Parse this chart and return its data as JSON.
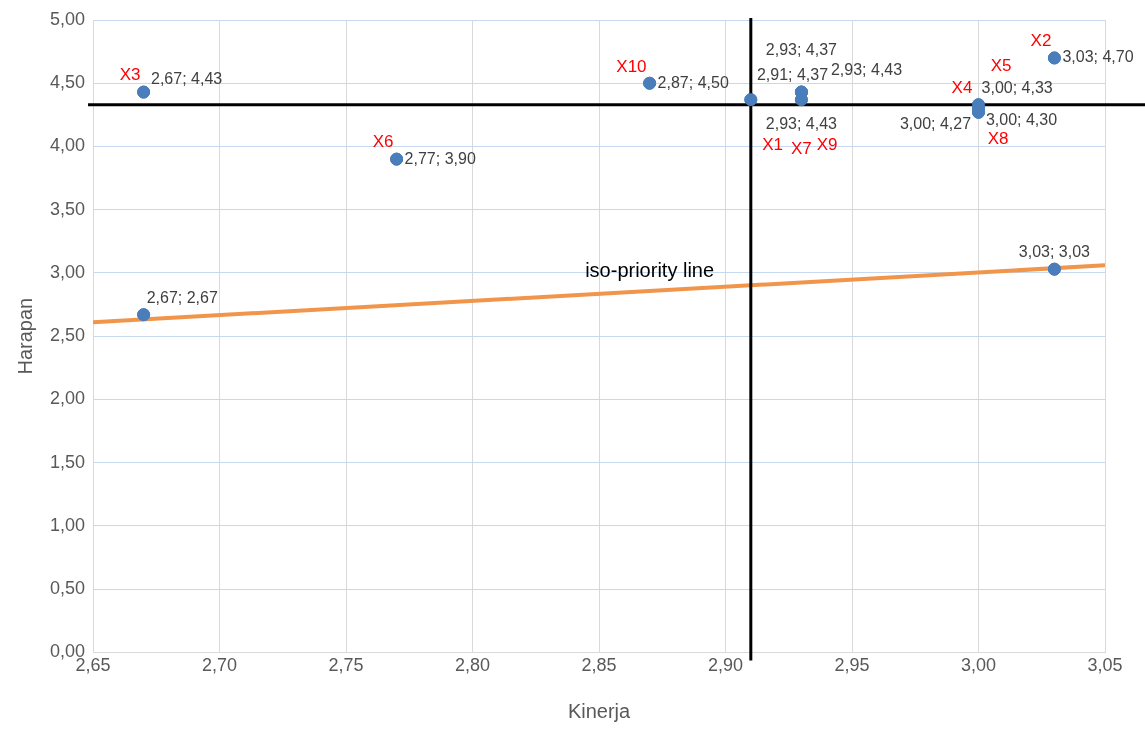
{
  "chart_data": {
    "type": "scatter",
    "xlabel": "Kinerja",
    "ylabel": "Harapan",
    "series": [
      {
        "marker": "circle",
        "color": "#4a7ebb",
        "x": [
          2.67,
          2.87,
          2.91,
          2.93,
          2.93,
          2.93,
          3.03,
          3.0,
          3.0,
          3.0,
          2.77,
          2.67,
          3.03
        ],
        "values": [
          4.43,
          4.5,
          4.37,
          4.43,
          4.43,
          4.37,
          4.7,
          4.33,
          4.27,
          4.3,
          3.9,
          2.67,
          3.03
        ],
        "value_labels": [
          "2,67; 4,43",
          "2,87; 4,50",
          "2,91; 4,37",
          "2,93; 4,43",
          "2,93; 4,43",
          "2,93; 4,37",
          "3,03; 4,70",
          "3,00; 4,33",
          "3,00; 4,27",
          "3,00; 4,30",
          "2,77; 3,90",
          "2,67; 2,67",
          "3,03; 3,03"
        ]
      },
      {
        "type": "line",
        "color": "#f0954a",
        "x": [
          2.65,
          3.05
        ],
        "values": [
          2.61,
          3.06
        ]
      }
    ],
    "xlim": [
      2.65,
      3.05
    ],
    "xticks": [
      {
        "value": 2.65,
        "label": "2,65"
      },
      {
        "value": 2.7,
        "label": "2,70"
      },
      {
        "value": 2.75,
        "label": "2,75"
      },
      {
        "value": 2.8,
        "label": "2,80"
      },
      {
        "value": 2.85,
        "label": "2,85"
      },
      {
        "value": 2.9,
        "label": "2,90"
      },
      {
        "value": 2.95,
        "label": "2,95"
      },
      {
        "value": 3.0,
        "label": "3,00"
      },
      {
        "value": 3.05,
        "label": "3,05"
      }
    ],
    "ylim": [
      0,
      5
    ],
    "yticks": [
      {
        "value": 0,
        "label": "0,00"
      },
      {
        "value": 0.5,
        "label": "0,50"
      },
      {
        "value": 1,
        "label": "1,00"
      },
      {
        "value": 1.5,
        "label": "1,50"
      },
      {
        "value": 2,
        "label": "2,00"
      },
      {
        "value": 2.5,
        "label": "2,50"
      },
      {
        "value": 3,
        "label": "3,00"
      },
      {
        "value": 3.5,
        "label": "3,50"
      },
      {
        "value": 4,
        "label": "4,00"
      },
      {
        "value": 4.5,
        "label": "4,50"
      },
      {
        "value": 5,
        "label": "5,00"
      }
    ],
    "ref_lines": [
      {
        "axis": "x",
        "value": 2.91,
        "color": "#000000"
      },
      {
        "axis": "y",
        "value": 4.33,
        "color": "#000000"
      }
    ],
    "annotations": [
      {
        "text": "X1",
        "x": 2.93,
        "y": 4.43
      },
      {
        "text": "X2",
        "x": 3.03,
        "y": 4.7
      },
      {
        "text": "X3",
        "x": 2.67,
        "y": 4.43
      },
      {
        "text": "X10",
        "x": 2.87,
        "y": 4.5
      },
      {
        "text": "X6",
        "x": 2.77,
        "y": 3.9
      },
      {
        "text": "X7",
        "x": 2.93,
        "y": 4.43
      },
      {
        "text": "X9",
        "x": 2.93,
        "y": 4.37
      },
      {
        "text": "X4",
        "x": 3.0,
        "y": 4.27
      },
      {
        "text": "X5",
        "x": 3.0,
        "y": 4.33
      },
      {
        "text": "X8",
        "x": 3.0,
        "y": 4.3
      },
      {
        "text": "iso-priority line",
        "x": 2.87,
        "y": 2.86
      }
    ],
    "grid": true,
    "legend": false
  }
}
